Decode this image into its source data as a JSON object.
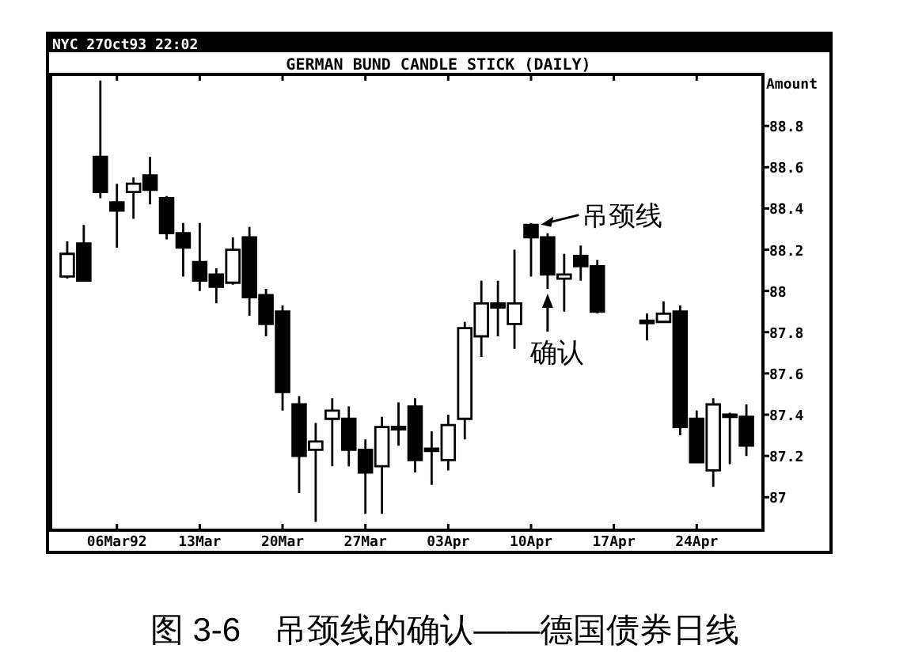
{
  "chart_data": {
    "type": "candlestick",
    "title": "GERMAN BUND CANDLE STICK (DAILY)",
    "subtitle": "NYC 27Oct93 22:02",
    "ylabel": "Amount",
    "categories": [
      null,
      null,
      null,
      "06Mar92",
      null,
      null,
      null,
      null,
      "13Mar",
      null,
      null,
      null,
      null,
      "20Mar",
      null,
      null,
      null,
      null,
      "27Mar",
      null,
      null,
      null,
      null,
      "03Apr",
      null,
      null,
      null,
      null,
      "10Apr",
      null,
      null,
      null,
      null,
      "17Apr",
      null,
      null,
      null,
      null,
      "24Apr",
      null,
      null,
      null
    ],
    "ohlc": [
      [
        88.07,
        88.24,
        88.06,
        88.18
      ],
      [
        88.23,
        88.32,
        88.05,
        88.05
      ],
      [
        88.65,
        89.02,
        88.45,
        88.48
      ],
      [
        88.43,
        88.52,
        88.21,
        88.39
      ],
      [
        88.48,
        88.55,
        88.35,
        88.52
      ],
      [
        88.56,
        88.65,
        88.42,
        88.49
      ],
      [
        88.45,
        88.46,
        88.25,
        88.28
      ],
      [
        88.28,
        88.33,
        88.07,
        88.21
      ],
      [
        88.14,
        88.33,
        88.0,
        88.05
      ],
      [
        88.08,
        88.11,
        87.94,
        88.02
      ],
      [
        88.04,
        88.26,
        88.03,
        88.2
      ],
      [
        88.26,
        88.31,
        87.88,
        87.97
      ],
      [
        87.98,
        88.01,
        87.78,
        87.84
      ],
      [
        87.9,
        87.93,
        87.42,
        87.51
      ],
      [
        87.45,
        87.49,
        87.02,
        87.2
      ],
      [
        87.23,
        87.36,
        86.88,
        87.27
      ],
      [
        87.38,
        87.48,
        87.15,
        87.42
      ],
      [
        87.38,
        87.44,
        87.15,
        87.23
      ],
      [
        87.23,
        87.28,
        86.92,
        87.12
      ],
      [
        87.15,
        87.39,
        86.92,
        87.34
      ],
      [
        87.33,
        87.46,
        87.25,
        87.34
      ],
      [
        87.44,
        87.48,
        87.12,
        87.18
      ],
      [
        87.23,
        87.32,
        87.06,
        87.23
      ],
      [
        87.18,
        87.4,
        87.13,
        87.35
      ],
      [
        87.38,
        87.85,
        87.28,
        87.82
      ],
      [
        87.78,
        88.05,
        87.68,
        87.94
      ],
      [
        87.94,
        88.05,
        87.78,
        87.92
      ],
      [
        87.84,
        88.2,
        87.72,
        87.94
      ],
      [
        88.32,
        88.33,
        88.07,
        88.26
      ],
      [
        88.26,
        88.28,
        88.01,
        88.08
      ],
      [
        88.06,
        88.18,
        87.9,
        88.08
      ],
      [
        88.17,
        88.22,
        88.05,
        88.12
      ],
      [
        88.12,
        88.15,
        87.89,
        87.9
      ],
      null,
      null,
      [
        87.85,
        87.89,
        87.76,
        87.85
      ],
      [
        87.85,
        87.95,
        87.85,
        87.89
      ],
      [
        87.9,
        87.93,
        87.3,
        87.34
      ],
      [
        87.38,
        87.42,
        87.17,
        87.17
      ],
      [
        87.13,
        87.48,
        87.05,
        87.45
      ],
      [
        87.4,
        87.41,
        87.16,
        87.39
      ],
      [
        87.39,
        87.45,
        87.2,
        87.25
      ]
    ],
    "ylim": [
      86.84,
      89.05
    ],
    "yticks": [
      87,
      87.2,
      87.4,
      87.6,
      87.8,
      88,
      88.2,
      88.4,
      88.6,
      88.8
    ],
    "annotations": [
      {
        "text": "吊颈线",
        "x": "10Apr",
        "y": 88.33
      },
      {
        "text": "确认",
        "y": 88.01
      },
      "图 3-6　吊颈线的确认——德国债券日线"
    ]
  }
}
